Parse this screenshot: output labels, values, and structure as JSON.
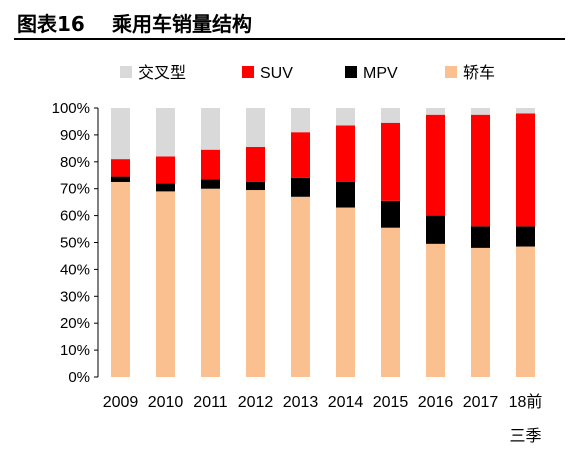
{
  "header": {
    "figure_number": "图表16",
    "title": "乘用车销量结构"
  },
  "colors": {
    "crossover": "#d9d9d9",
    "suv": "#ff0000",
    "mpv": "#000000",
    "sedan": "#fac090"
  },
  "chart_data": {
    "type": "bar",
    "stacked": true,
    "title": "乘用车销量结构",
    "xlabel": "",
    "ylabel": "",
    "ylim": [
      0,
      100
    ],
    "yticks": [
      "0%",
      "10%",
      "20%",
      "30%",
      "40%",
      "50%",
      "60%",
      "70%",
      "80%",
      "90%",
      "100%"
    ],
    "categories": [
      "2009",
      "2010",
      "2011",
      "2012",
      "2013",
      "2014",
      "2015",
      "2016",
      "2017",
      "18前三季"
    ],
    "category_lines": [
      [
        "2009"
      ],
      [
        "2010"
      ],
      [
        "2011"
      ],
      [
        "2012"
      ],
      [
        "2013"
      ],
      [
        "2014"
      ],
      [
        "2015"
      ],
      [
        "2016"
      ],
      [
        "2017"
      ],
      [
        "18前",
        "三季"
      ]
    ],
    "legend_position": "top",
    "grid": false,
    "series": [
      {
        "name": "轿车",
        "color": "#fac090",
        "values": [
          72.5,
          69.0,
          70.0,
          69.5,
          67.0,
          63.0,
          55.5,
          49.5,
          48.0,
          48.5
        ]
      },
      {
        "name": "MPV",
        "color": "#000000",
        "values": [
          2.0,
          3.0,
          3.5,
          3.0,
          7.0,
          9.5,
          10.0,
          10.5,
          8.0,
          7.5
        ]
      },
      {
        "name": "SUV",
        "color": "#ff0000",
        "values": [
          6.5,
          10.0,
          11.0,
          13.0,
          17.0,
          21.0,
          29.0,
          37.5,
          41.5,
          42.0
        ]
      },
      {
        "name": "交叉型",
        "color": "#d9d9d9",
        "values": [
          19.0,
          18.0,
          15.5,
          14.5,
          9.0,
          6.5,
          5.5,
          2.5,
          2.5,
          2.0
        ]
      }
    ],
    "legend_order": [
      "交叉型",
      "SUV",
      "MPV",
      "轿车"
    ]
  }
}
